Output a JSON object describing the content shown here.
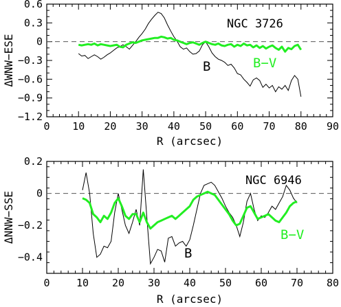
{
  "chart_data": [
    {
      "type": "line",
      "annotation": "NGC 3726",
      "xlabel": "R (arcsec)",
      "ylabel": "ΔWNW−ESE",
      "xlim": [
        0,
        90
      ],
      "ylim": [
        -1.2,
        0.6
      ],
      "xticks": [
        0,
        10,
        20,
        30,
        40,
        50,
        60,
        70,
        80,
        90
      ],
      "yticks": [
        -1.2,
        -0.9,
        -0.6,
        -0.3,
        0,
        0.3,
        0.6
      ],
      "ytick_labels": [
        "−1.2",
        "−0.9",
        "−0.6",
        "−0.3",
        "0",
        "0.3",
        "0.6"
      ],
      "reference_line": 0,
      "series": [
        {
          "name": "B",
          "color": "#000000",
          "x": [
            10,
            11,
            12,
            13,
            14,
            15,
            16,
            17,
            18,
            19,
            20,
            21,
            22,
            23,
            24,
            25,
            26,
            27,
            28,
            29,
            30,
            31,
            32,
            33,
            34,
            35,
            36,
            37,
            38,
            39,
            40,
            41,
            42,
            43,
            44,
            45,
            46,
            47,
            48,
            49,
            50,
            51,
            52,
            53,
            54,
            55,
            56,
            57,
            58,
            59,
            60,
            61,
            62,
            63,
            64,
            65,
            66,
            67,
            68,
            69,
            70,
            71,
            72,
            73,
            74,
            75,
            76,
            77,
            78,
            79,
            80
          ],
          "y": [
            -0.19,
            -0.23,
            -0.22,
            -0.27,
            -0.24,
            -0.21,
            -0.24,
            -0.28,
            -0.25,
            -0.21,
            -0.18,
            -0.14,
            -0.1,
            -0.08,
            -0.05,
            -0.08,
            -0.12,
            -0.06,
            0.0,
            0.07,
            0.13,
            0.2,
            0.29,
            0.36,
            0.42,
            0.47,
            0.45,
            0.38,
            0.27,
            0.17,
            0.08,
            0.01,
            -0.08,
            -0.12,
            -0.1,
            -0.16,
            -0.2,
            -0.19,
            -0.15,
            -0.05,
            0.0,
            -0.08,
            -0.18,
            -0.24,
            -0.28,
            -0.3,
            -0.33,
            -0.38,
            -0.36,
            -0.42,
            -0.51,
            -0.53,
            -0.6,
            -0.65,
            -0.71,
            -0.61,
            -0.58,
            -0.62,
            -0.73,
            -0.68,
            -0.74,
            -0.7,
            -0.8,
            -0.72,
            -0.76,
            -0.7,
            -0.78,
            -0.62,
            -0.54,
            -0.6,
            -0.88
          ]
        },
        {
          "name": "B−V",
          "color": "#22ee22",
          "x": [
            10,
            11,
            12,
            13,
            14,
            15,
            16,
            17,
            18,
            19,
            20,
            21,
            22,
            23,
            24,
            25,
            26,
            27,
            28,
            29,
            30,
            31,
            32,
            33,
            34,
            35,
            36,
            37,
            38,
            39,
            40,
            41,
            42,
            43,
            44,
            45,
            46,
            47,
            48,
            49,
            50,
            51,
            52,
            53,
            54,
            55,
            56,
            57,
            58,
            59,
            60,
            61,
            62,
            63,
            64,
            65,
            66,
            67,
            68,
            69,
            70,
            71,
            72,
            73,
            74,
            75,
            76,
            77,
            78,
            79,
            80
          ],
          "y": [
            -0.05,
            -0.06,
            -0.05,
            -0.04,
            -0.05,
            -0.03,
            -0.06,
            -0.04,
            -0.05,
            -0.06,
            -0.07,
            -0.06,
            -0.05,
            -0.08,
            -0.09,
            -0.05,
            -0.03,
            -0.01,
            -0.02,
            0.0,
            0.02,
            0.03,
            0.04,
            0.05,
            0.06,
            0.06,
            0.08,
            0.07,
            0.05,
            0.06,
            0.03,
            0.02,
            0.0,
            -0.02,
            -0.04,
            -0.02,
            -0.01,
            -0.03,
            -0.05,
            -0.02,
            0.0,
            -0.02,
            -0.04,
            -0.05,
            -0.03,
            -0.06,
            -0.07,
            -0.05,
            -0.04,
            -0.08,
            -0.05,
            -0.07,
            -0.03,
            -0.06,
            -0.05,
            -0.09,
            -0.06,
            -0.1,
            -0.07,
            -0.11,
            -0.08,
            -0.06,
            -0.1,
            -0.13,
            -0.08,
            -0.16,
            -0.1,
            -0.12,
            -0.07,
            -0.05,
            -0.13
          ]
        }
      ]
    },
    {
      "type": "line",
      "annotation": "NGC 6946",
      "xlabel": "R (arcsec)",
      "ylabel": "ΔNNW−SSE",
      "xlim": [
        0,
        80
      ],
      "ylim": [
        -0.5,
        0.2
      ],
      "xticks": [
        0,
        10,
        20,
        30,
        40,
        50,
        60,
        70,
        80
      ],
      "yticks": [
        -0.4,
        -0.2,
        0,
        0.2
      ],
      "ytick_labels": [
        "−0.4",
        "−0.2",
        "0",
        "0.2"
      ],
      "reference_line": 0,
      "series": [
        {
          "name": "B",
          "color": "#000000",
          "x": [
            10,
            11,
            12,
            13,
            14,
            15,
            16,
            17,
            18,
            19,
            20,
            21,
            22,
            23,
            24,
            25,
            26,
            27,
            28,
            29,
            30,
            31,
            32,
            33,
            34,
            35,
            36,
            37,
            38,
            39,
            40,
            41,
            42,
            43,
            44,
            45,
            46,
            47,
            48,
            49,
            50,
            51,
            52,
            53,
            54,
            55,
            56,
            57,
            58,
            59,
            60,
            61,
            62,
            63,
            64,
            65,
            66,
            67,
            68,
            69,
            70
          ],
          "y": [
            0.02,
            0.13,
            0.0,
            -0.25,
            -0.4,
            -0.38,
            -0.33,
            -0.34,
            -0.3,
            -0.12,
            0.0,
            -0.1,
            -0.2,
            -0.25,
            -0.18,
            -0.1,
            -0.2,
            0.15,
            -0.15,
            -0.44,
            -0.4,
            -0.35,
            -0.36,
            -0.43,
            -0.28,
            -0.27,
            -0.33,
            -0.31,
            -0.3,
            -0.33,
            -0.29,
            -0.2,
            -0.1,
            0.0,
            0.05,
            0.06,
            0.07,
            0.05,
            0.01,
            -0.03,
            -0.08,
            -0.12,
            -0.15,
            -0.2,
            -0.27,
            -0.18,
            -0.05,
            0.0,
            -0.1,
            -0.17,
            -0.14,
            -0.15,
            -0.12,
            -0.08,
            -0.1,
            -0.06,
            -0.02,
            0.05,
            0.02,
            -0.03,
            -0.06
          ]
        },
        {
          "name": "B−V",
          "color": "#22ee22",
          "x": [
            10,
            11,
            12,
            13,
            14,
            15,
            16,
            17,
            18,
            19,
            20,
            21,
            22,
            23,
            24,
            25,
            26,
            27,
            28,
            29,
            30,
            31,
            32,
            33,
            34,
            35,
            36,
            37,
            38,
            39,
            40,
            41,
            42,
            43,
            44,
            45,
            46,
            47,
            48,
            49,
            50,
            51,
            52,
            53,
            54,
            55,
            56,
            57,
            58,
            59,
            60,
            61,
            62,
            63,
            64,
            65,
            66,
            67,
            68,
            69,
            70
          ],
          "y": [
            -0.03,
            -0.04,
            -0.06,
            -0.13,
            -0.15,
            -0.18,
            -0.14,
            -0.16,
            -0.12,
            -0.06,
            -0.03,
            -0.08,
            -0.14,
            -0.16,
            -0.13,
            -0.13,
            -0.18,
            -0.12,
            -0.18,
            -0.22,
            -0.2,
            -0.18,
            -0.17,
            -0.16,
            -0.15,
            -0.14,
            -0.16,
            -0.14,
            -0.12,
            -0.1,
            -0.08,
            -0.04,
            -0.02,
            -0.01,
            0.0,
            0.01,
            0.0,
            -0.01,
            -0.04,
            -0.07,
            -0.1,
            -0.13,
            -0.17,
            -0.2,
            -0.19,
            -0.14,
            -0.09,
            -0.08,
            -0.12,
            -0.16,
            -0.15,
            -0.14,
            -0.13,
            -0.15,
            -0.17,
            -0.18,
            -0.15,
            -0.12,
            -0.08,
            -0.06,
            -0.05
          ]
        }
      ]
    }
  ]
}
